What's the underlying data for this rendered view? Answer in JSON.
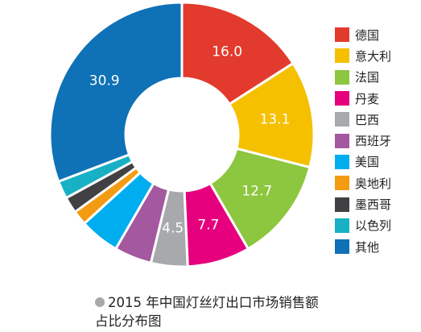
{
  "chart_data": {
    "type": "pie",
    "variant": "donut",
    "title": "2015 年中国灯丝灯出口市场销售额占比分布图",
    "slices": [
      {
        "label": "德国",
        "value": 16.0,
        "display": "16.0",
        "color": "#e23b2e"
      },
      {
        "label": "意大利",
        "value": 13.1,
        "display": "13.1",
        "color": "#f5c000"
      },
      {
        "label": "法国",
        "value": 12.7,
        "display": "12.7",
        "color": "#8dc63f"
      },
      {
        "label": "丹麦",
        "value": 7.7,
        "display": "7.7",
        "color": "#e6007e"
      },
      {
        "label": "巴西",
        "value": 4.5,
        "display": "4.5",
        "color": "#a7a9ac"
      },
      {
        "label": "西班牙",
        "value": 4.6,
        "display": "",
        "color": "#a3589f"
      },
      {
        "label": "美国",
        "value": 4.9,
        "display": "",
        "color": "#00aeef"
      },
      {
        "label": "奥地利",
        "value": 1.8,
        "display": "",
        "color": "#f39c12"
      },
      {
        "label": "墨西哥",
        "value": 2.0,
        "display": "",
        "color": "#414042"
      },
      {
        "label": "以色列",
        "value": 2.2,
        "display": "",
        "color": "#17b0c4"
      },
      {
        "label": "其他",
        "value": 30.9,
        "display": "30.9",
        "color": "#0f71b6"
      }
    ],
    "legend_position": "right"
  }
}
